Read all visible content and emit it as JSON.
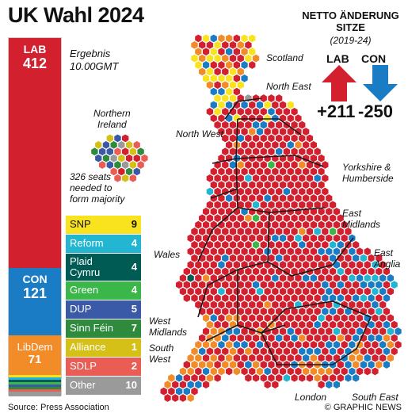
{
  "title": "UK Wahl 2024",
  "result_label": "Ergebnis",
  "result_time": "10.00GMT",
  "ni_label_line1": "Northern",
  "ni_label_line2": "Ireland",
  "needed_line1": "326 seats",
  "needed_line2": "needed to",
  "needed_line3": "form majority",
  "netto_line1": "NETTO ÄNDERUNG",
  "netto_line2": "SITZE",
  "netto_period": "(2019-24)",
  "lab_label": "LAB",
  "con_label": "CON",
  "lab_change": "+211",
  "con_change": "-250",
  "colors": {
    "lab": "#d3202f",
    "con": "#1a7cc4",
    "libdem": "#f28c28",
    "snp": "#f9e21e",
    "reform": "#23b6d2",
    "plaid": "#005b54",
    "green": "#3bb74a",
    "dup": "#3a5aa8",
    "sinnfein": "#2e8b3e",
    "alliance": "#d4c017",
    "sdlp": "#ea5d55",
    "other": "#9a9a9a"
  },
  "parties_main": [
    {
      "name": "LAB",
      "seats": "412"
    },
    {
      "name": "CON",
      "seats": "121"
    },
    {
      "name": "LibDem",
      "seats": "71"
    }
  ],
  "parties_small": [
    {
      "name": "SNP",
      "seats": "9"
    },
    {
      "name": "Reform",
      "seats": "4"
    },
    {
      "name": "Plaid Cymru",
      "seats": "4"
    },
    {
      "name": "Green",
      "seats": "4"
    },
    {
      "name": "DUP",
      "seats": "5"
    },
    {
      "name": "Sinn Féin",
      "seats": "7"
    },
    {
      "name": "Alliance",
      "seats": "1"
    },
    {
      "name": "SDLP",
      "seats": "2"
    },
    {
      "name": "Other",
      "seats": "10"
    }
  ],
  "regions": {
    "scotland": "Scotland",
    "north_east": "North East",
    "north_west": "North West",
    "yorkshire": "Yorkshire & Humberside",
    "east_midlands": "East Midlands",
    "east_anglia": "East Anglia",
    "wales": "Wales",
    "west_midlands": "West Midlands",
    "south_west": "South West",
    "london": "London",
    "south_east": "South East"
  },
  "source": "Source: Press Association",
  "credit": "© GRAPHIC NEWS"
}
